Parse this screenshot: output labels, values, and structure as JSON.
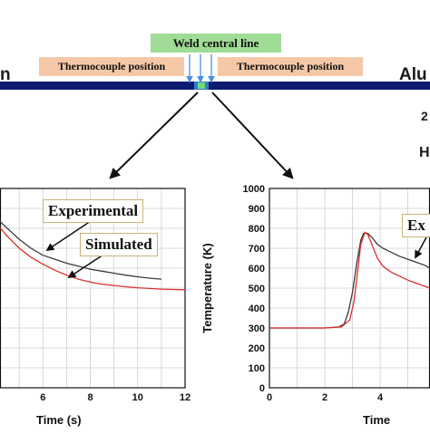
{
  "header": {
    "weld_label": "Weld central line",
    "thermocouple_left": "Thermocouple position",
    "thermocouple_right": "Thermocouple position",
    "left_material_fragment": "n",
    "right_material_fragment": "Alu",
    "right_edge_fragment_1": "2",
    "right_edge_fragment_2": "H"
  },
  "colors": {
    "weld_box": "#9fdc95",
    "thermocouple_box": "#f5c8a8",
    "plate": "#0d1a6e",
    "experimental_line": "#3a3a3a",
    "simulated_line": "#d9302b",
    "arrow_blue": "#4a90e2"
  },
  "chart_data": [
    {
      "type": "line",
      "xlabel": "Time (s)",
      "ylabel": "",
      "xlim": [
        3.5,
        12
      ],
      "ylim": [
        0,
        1000
      ],
      "xticks": [
        "6",
        "8",
        "10",
        "12"
      ],
      "yticks": [],
      "grid": true,
      "annotations": [
        "Experimental",
        "Simulated"
      ],
      "series": [
        {
          "name": "Experimental",
          "x": [
            3.5,
            4.0,
            4.5,
            5.0,
            5.5,
            6.0,
            6.5,
            7.0,
            7.5,
            8.0,
            8.5,
            9.0,
            9.5,
            10.0,
            10.5,
            11.0
          ],
          "y": [
            905,
            855,
            800,
            745,
            700,
            665,
            645,
            625,
            610,
            595,
            585,
            575,
            565,
            557,
            550,
            545
          ]
        },
        {
          "name": "Simulated",
          "x": [
            3.5,
            4.0,
            4.5,
            5.0,
            5.5,
            6.0,
            6.5,
            7.0,
            7.5,
            8.0,
            8.5,
            9.0,
            9.5,
            10.0,
            10.5,
            11.0,
            11.5,
            12.0
          ],
          "y": [
            905,
            830,
            760,
            700,
            655,
            620,
            590,
            565,
            545,
            530,
            520,
            513,
            507,
            502,
            498,
            495,
            493,
            492
          ]
        }
      ]
    },
    {
      "type": "line",
      "xlabel": "Time",
      "ylabel": "Temperature (K)",
      "xlim": [
        0,
        5.8
      ],
      "ylim": [
        0,
        1000
      ],
      "xticks": [
        "0",
        "2",
        "4"
      ],
      "yticks": [
        "0",
        "100",
        "200",
        "300",
        "400",
        "500",
        "600",
        "700",
        "800",
        "900",
        "1000"
      ],
      "grid": true,
      "annotations": [
        "Ex"
      ],
      "series": [
        {
          "name": "Experimental",
          "x": [
            0,
            1.0,
            2.0,
            2.5,
            2.7,
            2.85,
            3.0,
            3.15,
            3.3,
            3.4,
            3.55,
            3.7,
            3.9,
            4.1,
            4.4,
            4.7,
            5.0,
            5.3,
            5.6,
            5.8
          ],
          "y": [
            300,
            300,
            300,
            305,
            320,
            380,
            480,
            620,
            740,
            775,
            775,
            755,
            720,
            700,
            680,
            660,
            645,
            630,
            615,
            600
          ]
        },
        {
          "name": "Simulated",
          "x": [
            0,
            1.0,
            2.0,
            2.6,
            2.9,
            3.05,
            3.2,
            3.3,
            3.45,
            3.55,
            3.7,
            3.9,
            4.1,
            4.4,
            4.7,
            5.0,
            5.3,
            5.6,
            5.8
          ],
          "y": [
            300,
            300,
            300,
            305,
            340,
            430,
            600,
            720,
            780,
            770,
            720,
            650,
            610,
            580,
            560,
            540,
            525,
            510,
            500
          ]
        }
      ]
    }
  ]
}
